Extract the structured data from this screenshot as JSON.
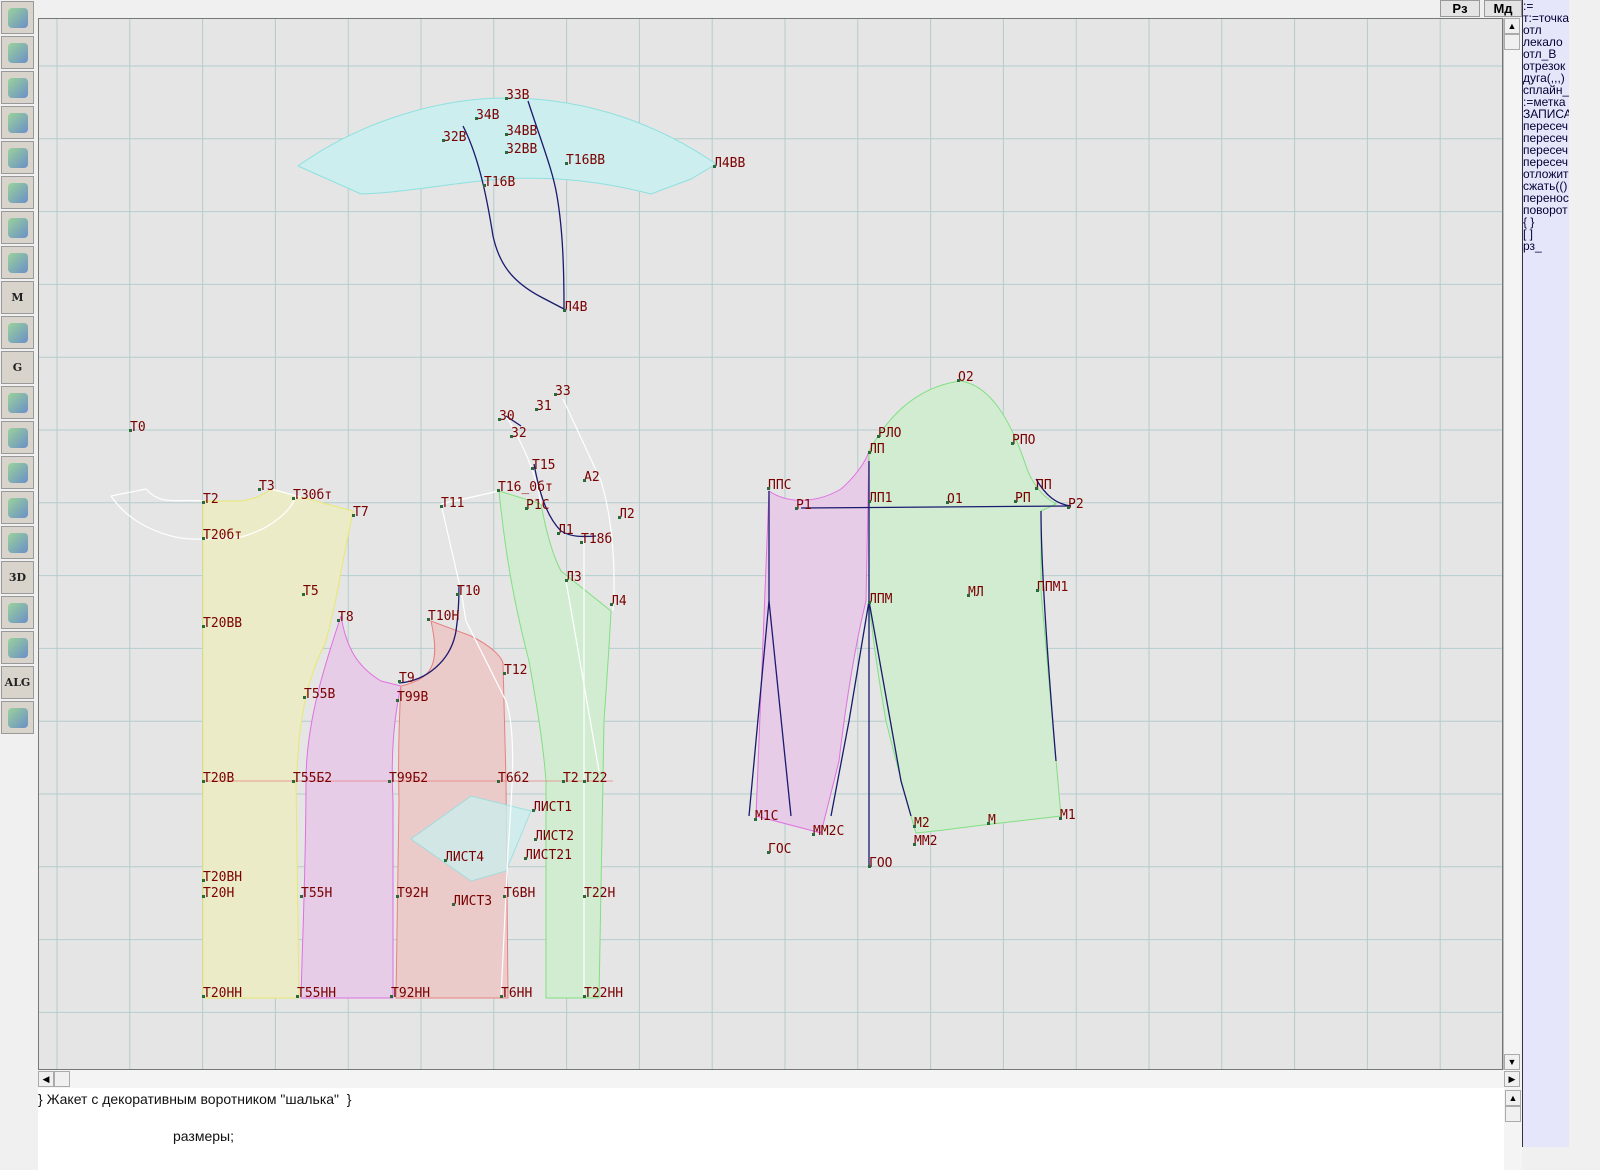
{
  "toolbar": {
    "tools": [
      {
        "icon": "refresh-icon",
        "label": ""
      },
      {
        "icon": "zoom-in-icon",
        "label": ""
      },
      {
        "icon": "zoom-out-icon",
        "label": ""
      },
      {
        "icon": "zoom-pattern-icon",
        "label": ""
      },
      {
        "icon": "grid-icon",
        "label": ""
      },
      {
        "icon": "segment-icon",
        "label": ""
      },
      {
        "icon": "layout-map-icon",
        "label": ""
      },
      {
        "icon": "pattern-pieces-icon",
        "label": ""
      },
      {
        "icon": "pattern-m-icon",
        "label": "M"
      },
      {
        "icon": "compass-icon",
        "label": ""
      },
      {
        "icon": "grading-g-icon",
        "label": "G"
      },
      {
        "icon": "measure-table-icon",
        "label": ""
      },
      {
        "icon": "camera-icon",
        "label": ""
      },
      {
        "icon": "spreadsheet-icon",
        "label": ""
      },
      {
        "icon": "model-photo-icon",
        "label": ""
      },
      {
        "icon": "jacket-sketch-icon",
        "label": ""
      },
      {
        "icon": "3d-icon",
        "label": "3D"
      },
      {
        "icon": "text-list-icon",
        "label": ""
      },
      {
        "icon": "fabric-stack-icon",
        "label": ""
      },
      {
        "icon": "algorithm-icon",
        "label": "ALG"
      },
      {
        "icon": "exit-icon",
        "label": ""
      }
    ]
  },
  "top_buttons": {
    "rz": "Рз",
    "md": "Мд"
  },
  "command_panel": {
    "items": [
      ":=",
      "т:=точка",
      "отл",
      "лекало",
      "отл_В",
      "отрезок",
      "дуга(,,,)",
      "сплайн_",
      ":=метка",
      "ЗАПИСА",
      "пересеч",
      "пересеч",
      "пересеч",
      "пересеч",
      "отложит",
      "сжать(()",
      "перенос",
      "поворот",
      "{  }",
      "[  ]",
      "рз_"
    ]
  },
  "editor": {
    "line1": "} Жакет с декоративным воротником \"шалька\"  }",
    "line2": "размеры;"
  },
  "colors": {
    "canvas": "#e5e5e5",
    "grid": "#b5cccc",
    "label": "#7a0000",
    "line_navy": "#1a1a6e",
    "back_piece": "#ecebc8",
    "side_pink": "#e6cce6",
    "side_red": "#ebcaca",
    "front_green": "#d2ecd2",
    "collar_cyan": "#cdeeee",
    "panel": "#e6e6fb"
  },
  "labels": [
    "З3В",
    "З4В",
    "З2В",
    "З4ВВ",
    "З2ВВ",
    "Т16ВВ",
    "Л4ВВ",
    "Т16В",
    "Л4В",
    "Т0",
    "Т2",
    "Т3",
    "Т30бт",
    "Т7",
    "Т20бт",
    "Т5",
    "Т20ВВ",
    "Т8",
    "Т10",
    "Т10Н",
    "Т11",
    "Т16_0бт",
    "Т15",
    "Р1С",
    "Л1",
    "Т18б",
    "А2",
    "Л2",
    "Л3",
    "Л4",
    "Т12",
    "Т9",
    "Т99В",
    "Т55В",
    "З3",
    "З1",
    "З0",
    "З2",
    "Т20В",
    "Т55Б2",
    "Т99Б2",
    "Т6б2",
    "Т2",
    "Т22",
    "ЛИСТ1",
    "ЛИСТ2",
    "ЛИСТ21",
    "ЛИСТ4",
    "ЛИСТ3",
    "Т20ВН",
    "Т20Н",
    "Т55Н",
    "Т92Н",
    "Т6ВН",
    "Т22Н",
    "Т20НН",
    "Т55НН",
    "Т92НН",
    "Т6НН",
    "Т22НН",
    "О2",
    "РЛО",
    "ЛП",
    "РПО",
    "ППС",
    "Р1",
    "ЛП1",
    "О1",
    "РП",
    "ПП",
    "Р2",
    "ЛПМ",
    "МЛ",
    "ППМ1",
    "М1",
    "М2",
    "ММ2",
    "М",
    "М1С",
    "ММ2С",
    "ГОС",
    "ГОО"
  ]
}
